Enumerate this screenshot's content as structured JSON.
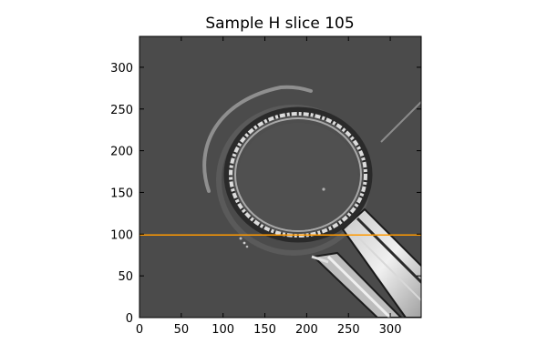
{
  "figure": {
    "title": "Sample H slice 105"
  },
  "chart_data": {
    "type": "image",
    "title": "Sample H slice 105",
    "xlim": [
      0,
      337
    ],
    "ylim": [
      0,
      337
    ],
    "x_ticks": [
      0,
      50,
      100,
      150,
      200,
      250,
      300
    ],
    "y_ticks": [
      0,
      50,
      100,
      150,
      200,
      250,
      300
    ],
    "grid": false,
    "legend": "none",
    "colormap": "gray",
    "overlay": {
      "type": "horizontal-line",
      "y": 99,
      "x_range": [
        0,
        337
      ],
      "color": "#ff9900"
    }
  },
  "colors": {
    "background": "#4b4b4b",
    "frame": "#000000"
  }
}
